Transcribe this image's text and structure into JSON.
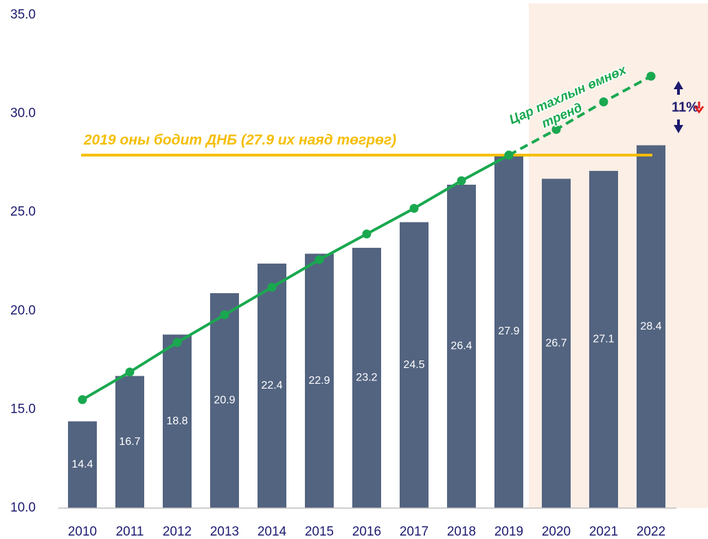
{
  "chart_data": {
    "type": "bar",
    "categories": [
      "2010",
      "2011",
      "2012",
      "2013",
      "2014",
      "2015",
      "2016",
      "2017",
      "2018",
      "2019",
      "2020",
      "2021",
      "2022"
    ],
    "values": [
      14.4,
      16.7,
      18.8,
      20.9,
      22.4,
      22.9,
      23.2,
      24.5,
      26.4,
      27.9,
      26.7,
      27.1,
      28.4
    ],
    "color": "#536480",
    "ylim": [
      10,
      35
    ],
    "yticks": [
      {
        "value": 10,
        "label": "10.0"
      },
      {
        "value": 15,
        "label": "15.0"
      },
      {
        "value": 20,
        "label": "20.0"
      },
      {
        "value": 25,
        "label": "25.0"
      },
      {
        "value": 30,
        "label": "30.0"
      },
      {
        "value": 35,
        "label": "35.0"
      }
    ],
    "grid": false,
    "lines": [
      {
        "color": "#19a84f",
        "dashed": false,
        "values": [
          15.5,
          16.9,
          18.4,
          19.8,
          21.2,
          22.6,
          23.9,
          25.2,
          26.6,
          27.9,
          null,
          null,
          null
        ]
      },
      {
        "color": "#19a84f",
        "dashed": true,
        "values": [
          null,
          null,
          null,
          null,
          null,
          null,
          null,
          null,
          null,
          27.9,
          29.2,
          30.6,
          31.9
        ]
      }
    ],
    "reference_line": {
      "value": 27.9,
      "color": "#f5be00",
      "label": "2019 оны бодит ДНБ (27.9 их наяд төгрөг)"
    },
    "trend_label": [
      "Цар тахлын өмнөх",
      "тренд"
    ],
    "gap_label": "11%"
  }
}
